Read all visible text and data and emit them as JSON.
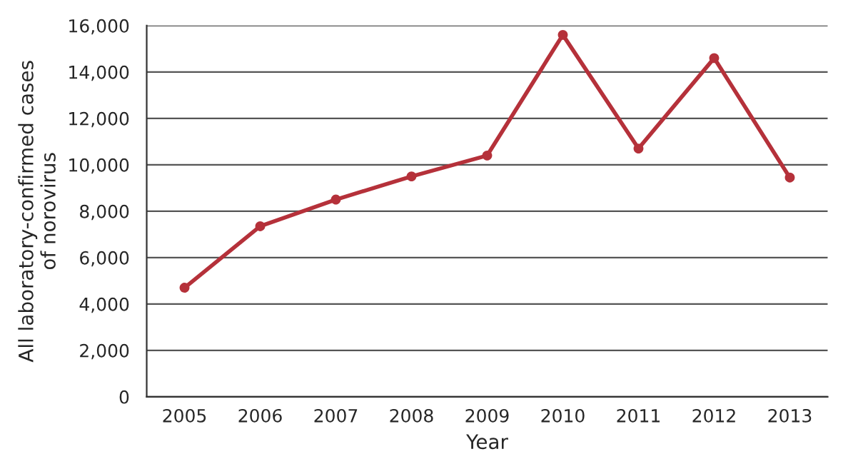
{
  "chart_data": {
    "type": "line",
    "xlabel": "Year",
    "ylabel": "All laboratory-confirmed cases\nof norovirus",
    "categories": [
      "2005",
      "2006",
      "2007",
      "2008",
      "2009",
      "2010",
      "2011",
      "2012",
      "2013"
    ],
    "series": [
      {
        "color": "#b5313a",
        "values": [
          4700,
          7350,
          8500,
          9500,
          10400,
          15600,
          10700,
          14600,
          9450
        ]
      }
    ],
    "ylim": [
      0,
      16000
    ],
    "yticks": [
      {
        "value": 0,
        "label": "0"
      },
      {
        "value": 2000,
        "label": "2,000"
      },
      {
        "value": 4000,
        "label": "4,000"
      },
      {
        "value": 6000,
        "label": "6,000"
      },
      {
        "value": 8000,
        "label": "8,000"
      },
      {
        "value": 10000,
        "label": "10,000"
      },
      {
        "value": 12000,
        "label": "12,000"
      },
      {
        "value": 14000,
        "label": "14,000"
      },
      {
        "value": 16000,
        "label": "16,000"
      }
    ],
    "grid": "y",
    "marker": "circle",
    "line_style": "solid",
    "legend": false
  }
}
